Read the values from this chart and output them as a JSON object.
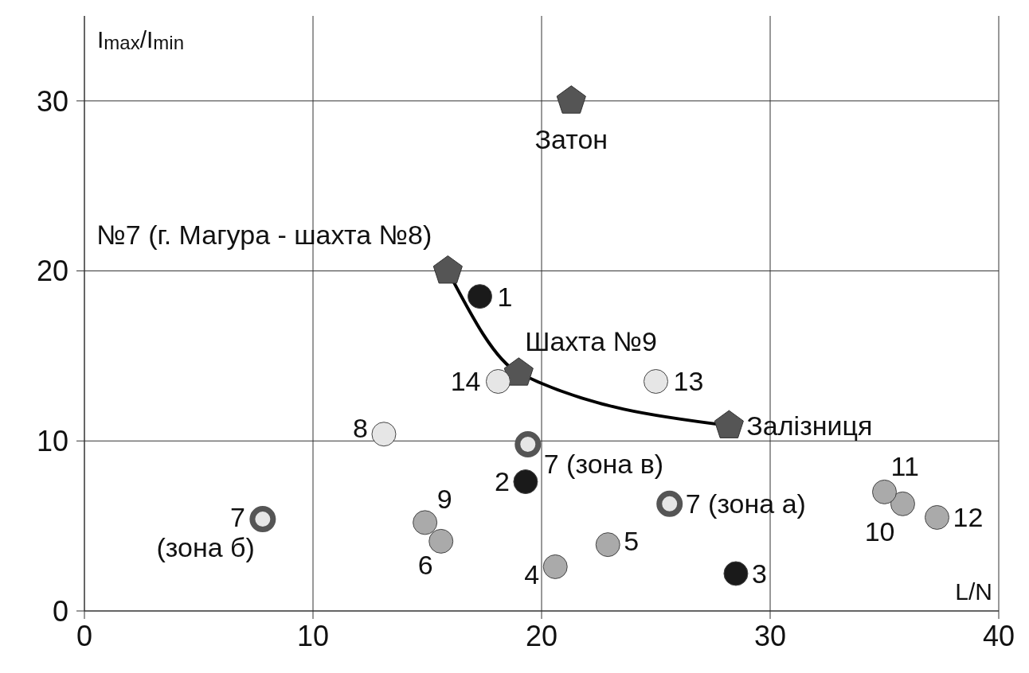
{
  "chart_data": {
    "type": "scatter",
    "xlabel": "L/N",
    "ylabel": "I$_{max}$/I$_{min}$",
    "xlim": [
      0,
      40
    ],
    "ylim": [
      0,
      35
    ],
    "xticks": [
      0,
      10,
      20,
      30,
      40
    ],
    "yticks": [
      0,
      10,
      20,
      30
    ],
    "grid": true,
    "series": [
      {
        "color": "#555555",
        "x": [
          15.9,
          21.3,
          19.0,
          28.2
        ],
        "values": [
          20,
          30,
          14.0,
          10.9
        ]
      },
      {
        "type": "line",
        "marker": "none",
        "line_style": "solid",
        "color": "#000000",
        "x": [
          15.9,
          19.0,
          28.2
        ],
        "values": [
          20,
          14.0,
          10.9
        ]
      },
      {
        "marker": "circle",
        "color": "#1a1a1a",
        "x": [
          17.3,
          19.3,
          28.5
        ],
        "values": [
          18.5,
          7.6,
          2.2
        ]
      },
      {
        "marker": "circle",
        "color": "#aaaaaa",
        "x": [
          20.6,
          22.9,
          15.6,
          14.9,
          35.8,
          35.0,
          37.3
        ],
        "values": [
          2.6,
          3.9,
          4.1,
          5.2,
          6.3,
          7.0,
          5.5
        ]
      },
      {
        "marker": "circle",
        "color": "#e6e6e6",
        "x": [
          13.1,
          25.0,
          18.1
        ],
        "values": [
          10.4,
          13.5,
          13.5
        ]
      },
      {
        "marker": "circle",
        "color": "#555555",
        "x": [
          7.8,
          19.4,
          25.6
        ],
        "values": [
          5.4,
          9.8,
          6.3
        ]
      }
    ],
    "annotations": [
      {
        "text": "№7 (г. Магура - шахта №8)",
        "x": 15.9,
        "y": 20
      },
      {
        "text": "Затон",
        "x": 21.3,
        "y": 30
      },
      {
        "text": "Шахта №9",
        "x": 19.0,
        "y": 14.0
      },
      {
        "text": "Залізниця",
        "x": 28.2,
        "y": 10.9
      },
      {
        "text": "1",
        "x": 17.3,
        "y": 18.5
      },
      {
        "text": "2",
        "x": 19.3,
        "y": 7.6
      },
      {
        "text": "3",
        "x": 28.5,
        "y": 2.2
      },
      {
        "text": "4",
        "x": 20.6,
        "y": 2.6
      },
      {
        "text": "5",
        "x": 22.9,
        "y": 3.9
      },
      {
        "text": "6",
        "x": 15.6,
        "y": 4.1
      },
      {
        "text": "9",
        "x": 14.9,
        "y": 5.2
      },
      {
        "text": "10",
        "x": 35.8,
        "y": 6.3
      },
      {
        "text": "11",
        "x": 35.0,
        "y": 7.0
      },
      {
        "text": "12",
        "x": 37.3,
        "y": 5.5
      },
      {
        "text": "8",
        "x": 13.1,
        "y": 10.4
      },
      {
        "text": "13",
        "x": 25.0,
        "y": 13.5
      },
      {
        "text": "14",
        "x": 18.1,
        "y": 13.5
      },
      {
        "text": "7 (зона б)",
        "x": 7.8,
        "y": 5.4
      },
      {
        "text": "7 (зона в)",
        "x": 19.4,
        "y": 9.8
      },
      {
        "text": "7 (зона а)",
        "x": 25.6,
        "y": 6.3
      }
    ]
  }
}
